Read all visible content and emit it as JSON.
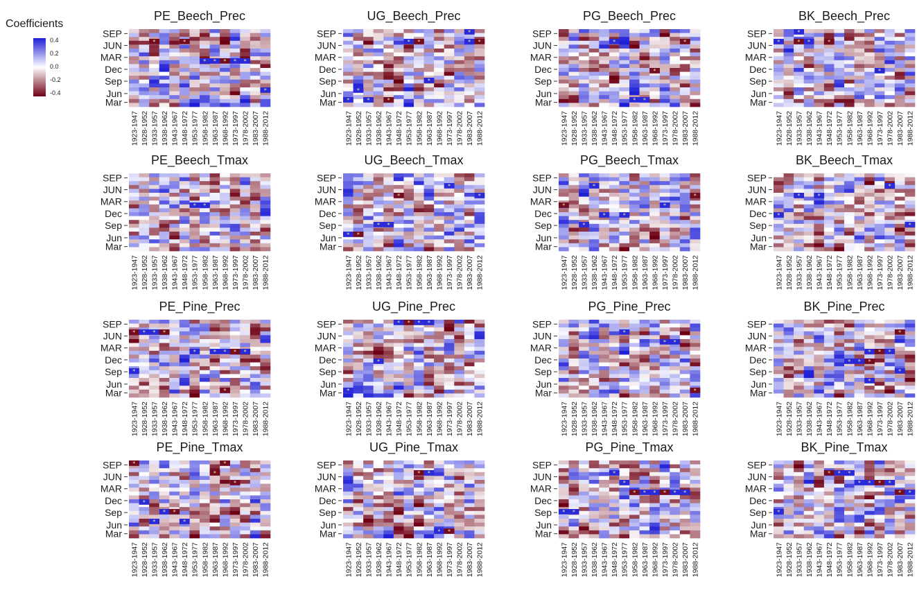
{
  "legend": {
    "title": "Coefficients",
    "ticks": [
      "0.4",
      "0.2",
      "0.0",
      "-0.2",
      "-0.4"
    ],
    "colors": {
      "high": "#1f1fd6",
      "mid": "#ffffff",
      "low": "#6e0014"
    }
  },
  "chart_data": {
    "type": "heatmap",
    "x_categories": [
      "1923-1947",
      "1928-1952",
      "1933-1957",
      "1938-1962",
      "1943-1967",
      "1948-1972",
      "1953-1977",
      "1958-1982",
      "1963-1987",
      "1968-1992",
      "1973-1997",
      "1978-2002",
      "1983-2007",
      "1988-2012"
    ],
    "y_tick_labels": [
      "SEP",
      "JUN",
      "MAR",
      "Dec",
      "Sep",
      "Jun",
      "Mar"
    ],
    "value_range": [
      -0.4,
      0.4
    ],
    "panels": [
      {
        "title": "PE_Beech_Prec",
        "sig": [
          [
            2,
            1
          ],
          [
            5,
            1
          ],
          [
            7,
            3
          ],
          [
            8,
            3
          ],
          [
            9,
            3
          ],
          [
            10,
            3
          ],
          [
            11,
            3
          ],
          [
            13,
            6
          ]
        ]
      },
      {
        "title": "UG_Beech_Prec",
        "sig": [
          [
            0,
            7
          ],
          [
            1,
            6
          ],
          [
            2,
            7
          ],
          [
            4,
            7
          ],
          [
            6,
            1
          ],
          [
            7,
            1
          ],
          [
            8,
            5
          ],
          [
            12,
            1
          ],
          [
            13,
            1
          ],
          [
            12,
            0
          ]
        ]
      },
      {
        "title": "PG_Beech_Prec",
        "sig": [
          [
            5,
            1
          ],
          [
            9,
            4
          ],
          [
            12,
            1
          ],
          [
            7,
            7
          ],
          [
            8,
            7
          ]
        ]
      },
      {
        "title": "BK_Beech_Prec",
        "sig": [
          [
            0,
            1
          ],
          [
            2,
            1
          ],
          [
            3,
            1
          ],
          [
            5,
            1
          ],
          [
            2,
            0
          ],
          [
            10,
            4
          ]
        ]
      },
      {
        "title": "PE_Beech_Tmax",
        "sig": [
          [
            6,
            3
          ],
          [
            7,
            3
          ]
        ]
      },
      {
        "title": "UG_Beech_Tmax",
        "sig": [
          [
            0,
            6
          ],
          [
            1,
            6
          ],
          [
            3,
            5
          ],
          [
            4,
            5
          ],
          [
            5,
            2
          ],
          [
            10,
            1
          ],
          [
            13,
            2
          ]
        ]
      },
      {
        "title": "PG_Beech_Tmax",
        "sig": [
          [
            3,
            1
          ],
          [
            0,
            3
          ],
          [
            4,
            4
          ],
          [
            6,
            4
          ],
          [
            2,
            5
          ],
          [
            10,
            3
          ],
          [
            13,
            2
          ]
        ]
      },
      {
        "title": "BK_Beech_Tmax",
        "sig": [
          [
            0,
            4
          ],
          [
            2,
            2
          ],
          [
            4,
            2
          ],
          [
            11,
            1
          ],
          [
            13,
            5
          ]
        ]
      },
      {
        "title": "PE_Pine_Prec",
        "sig": [
          [
            0,
            1
          ],
          [
            1,
            1
          ],
          [
            2,
            1
          ],
          [
            3,
            1
          ],
          [
            0,
            5
          ],
          [
            6,
            3
          ],
          [
            8,
            3
          ],
          [
            9,
            3
          ],
          [
            10,
            3
          ],
          [
            11,
            3
          ],
          [
            9,
            7
          ]
        ]
      },
      {
        "title": "UG_Pine_Prec",
        "sig": [
          [
            5,
            0
          ],
          [
            6,
            0
          ],
          [
            7,
            0
          ],
          [
            8,
            0
          ],
          [
            3,
            4
          ],
          [
            0,
            7
          ]
        ]
      },
      {
        "title": "PG_Pine_Prec",
        "sig": [
          [
            6,
            1
          ],
          [
            10,
            2
          ],
          [
            11,
            2
          ],
          [
            13,
            7
          ]
        ]
      },
      {
        "title": "BK_Pine_Prec",
        "sig": [
          [
            9,
            3
          ],
          [
            10,
            3
          ],
          [
            11,
            3
          ],
          [
            8,
            4
          ],
          [
            12,
            1
          ],
          [
            9,
            4
          ],
          [
            7,
            4
          ],
          [
            9,
            6
          ],
          [
            12,
            5
          ]
        ]
      },
      {
        "title": "PE_Pine_Tmax",
        "sig": [
          [
            0,
            0
          ],
          [
            8,
            1
          ],
          [
            9,
            0
          ],
          [
            1,
            4
          ],
          [
            2,
            6
          ],
          [
            3,
            5
          ],
          [
            4,
            5
          ],
          [
            5,
            6
          ],
          [
            10,
            2
          ]
        ]
      },
      {
        "title": "UG_Pine_Tmax",
        "sig": [
          [
            7,
            1
          ],
          [
            8,
            1
          ],
          [
            9,
            7
          ],
          [
            10,
            7
          ]
        ]
      },
      {
        "title": "PG_Pine_Tmax",
        "sig": [
          [
            0,
            5
          ],
          [
            1,
            5
          ],
          [
            7,
            3
          ],
          [
            8,
            3
          ],
          [
            9,
            3
          ],
          [
            10,
            3
          ],
          [
            11,
            3
          ],
          [
            12,
            3
          ],
          [
            5,
            1
          ],
          [
            6,
            2
          ]
        ]
      },
      {
        "title": "BK_Pine_Tmax",
        "sig": [
          [
            0,
            5
          ],
          [
            5,
            1
          ],
          [
            6,
            1
          ],
          [
            7,
            1
          ],
          [
            8,
            2
          ],
          [
            9,
            2
          ],
          [
            10,
            2
          ],
          [
            11,
            2
          ],
          [
            12,
            3
          ],
          [
            13,
            3
          ]
        ]
      }
    ]
  }
}
